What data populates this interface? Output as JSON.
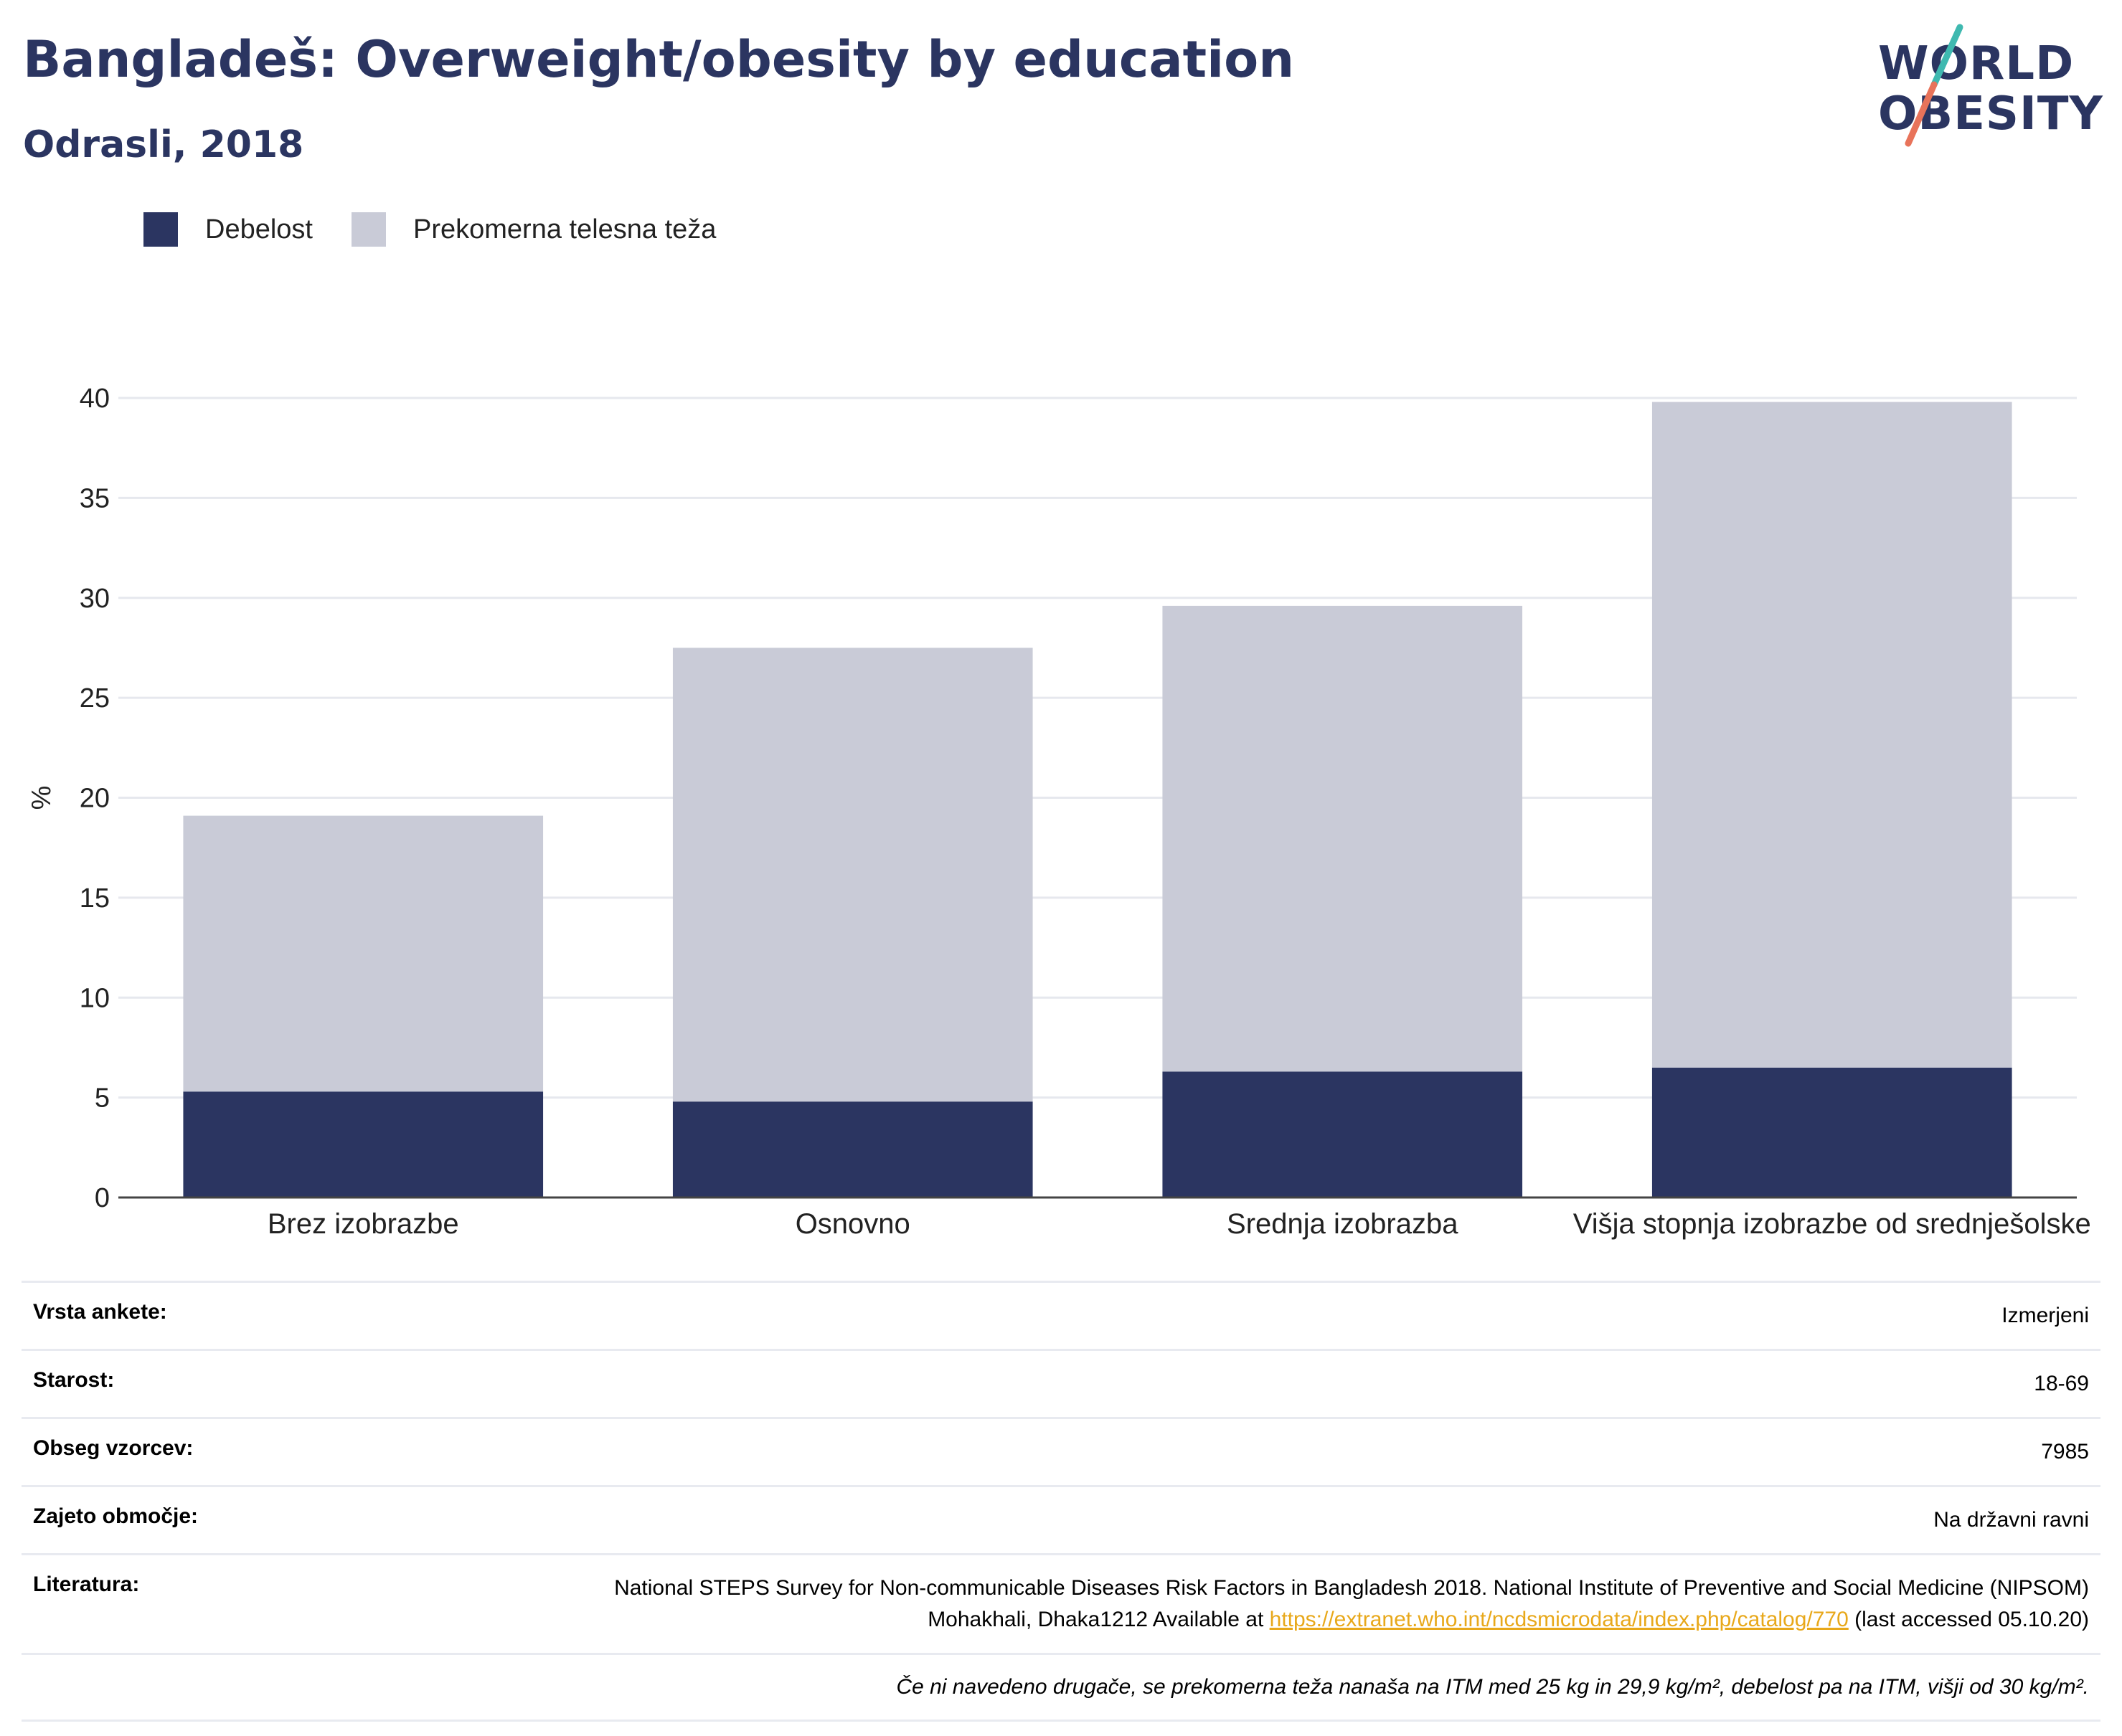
{
  "header": {
    "title": "Bangladeš: Overweight/obesity by education",
    "subtitle": "Odrasli, 2018"
  },
  "logo": {
    "line1": "WORLD",
    "line2": "OBESITY",
    "accent_teal": "#3fb9b0",
    "accent_coral": "#e8735a"
  },
  "colors": {
    "obesity": "#2b3561",
    "overweight": "#c9cbd7"
  },
  "chart_data": {
    "type": "bar",
    "stacked": true,
    "categories": [
      "Brez izobrazbe",
      "Osnovno",
      "Srednja izobrazba",
      "Višja stopnja izobrazbe od srednješolske"
    ],
    "series": [
      {
        "name": "Debelost",
        "values": [
          5.3,
          4.8,
          6.3,
          6.5
        ]
      },
      {
        "name": "Prekomerna telesna teža",
        "values": [
          13.8,
          22.7,
          23.3,
          33.3
        ]
      }
    ],
    "ylabel": "%",
    "ylim": [
      0,
      40
    ],
    "yticks": [
      0,
      5,
      10,
      15,
      20,
      25,
      30,
      35,
      40
    ],
    "grid": true,
    "legend_position": "top-left"
  },
  "info": {
    "rows": [
      {
        "key": "Vrsta ankete:",
        "value": "Izmerjeni"
      },
      {
        "key": "Starost:",
        "value": "18-69"
      },
      {
        "key": "Obseg vzorcev:",
        "value": "7985"
      },
      {
        "key": "Zajeto območje:",
        "value": "Na državni ravni"
      }
    ],
    "literature_key": "Literatura:",
    "literature_text_1": "National STEPS Survey for Non-communicable Diseases Risk Factors in Bangladesh 2018. National Institute of Preventive and Social Medicine (NIPSOM) Mohakhali, Dhaka1212 Available at ",
    "literature_link": "https://extranet.who.int/ncdsmicrodata/index.php/catalog/770",
    "literature_text_2": " (last accessed 05.10.20)",
    "note": "Če ni navedeno drugače, se prekomerna teža nanaša na ITM med 25 kg in 29,9 kg/m², debelost pa na ITM, višji od 30 kg/m²."
  }
}
